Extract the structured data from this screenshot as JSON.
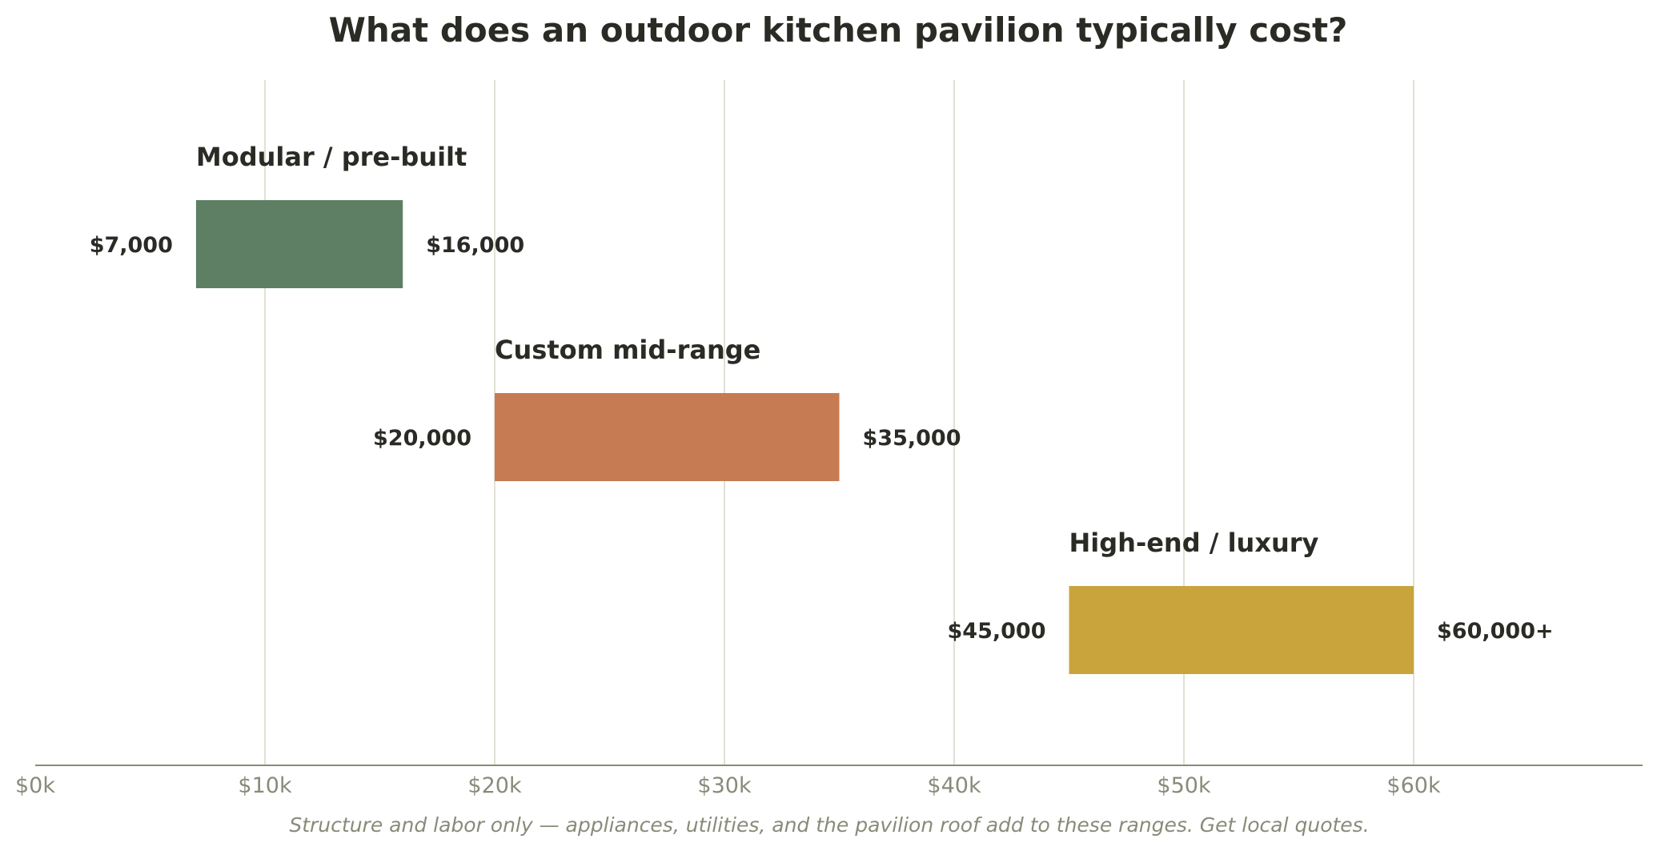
{
  "chart_data": {
    "type": "bar",
    "orientation": "horizontal-range",
    "title": "What does an outdoor kitchen pavilion typically cost?",
    "caption": "Structure and labor only — appliances, utilities, and the pavilion roof add to these ranges. Get local quotes.",
    "xlim": [
      0,
      70000
    ],
    "x_ticks": [
      0,
      10000,
      20000,
      30000,
      40000,
      50000,
      60000
    ],
    "x_tick_labels": [
      "$0k",
      "$10k",
      "$20k",
      "$30k",
      "$40k",
      "$50k",
      "$60k"
    ],
    "grid": "vertical",
    "categories": [
      "Modular / pre-built",
      "Custom mid-range",
      "High-end / luxury"
    ],
    "series": [
      {
        "ranges": [
          {
            "low": 7000,
            "high": 16000,
            "low_label": "$7,000",
            "high_label": "$16,000",
            "color": "#5e7f63"
          },
          {
            "low": 20000,
            "high": 35000,
            "low_label": "$20,000",
            "high_label": "$35,000",
            "color": "#c77b52"
          },
          {
            "low": 45000,
            "high": 60000,
            "low_label": "$45,000",
            "high_label": "$60,000+",
            "color": "#c9a43c"
          }
        ]
      }
    ]
  }
}
